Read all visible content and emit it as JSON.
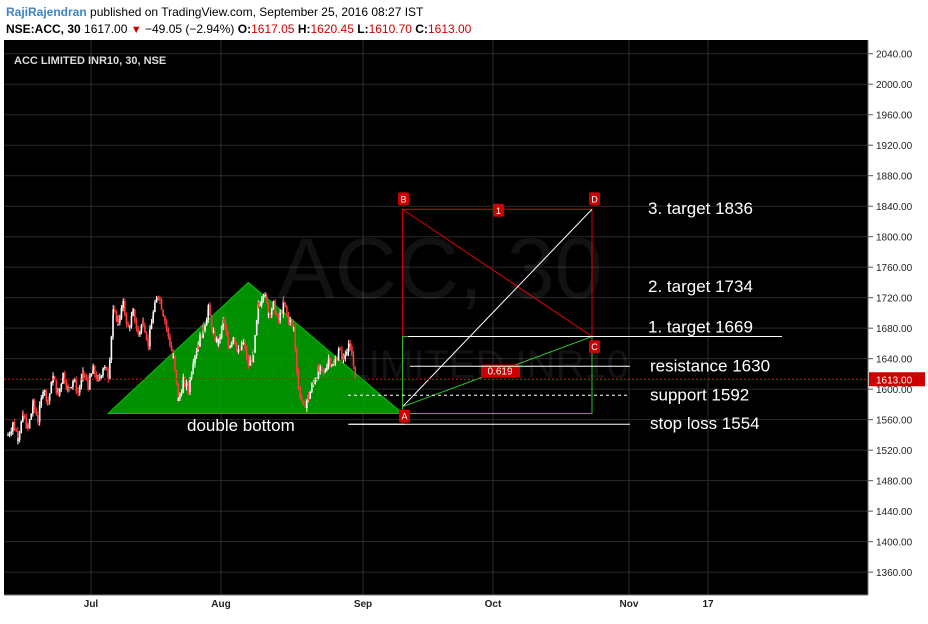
{
  "header": {
    "author": "RajiRajendran",
    "published_text": "published on TradingView.com, September 25, 2016 08:27 IST",
    "symbol_interval": "NSE:ACC, 30",
    "last_price": "1617.00",
    "change": "−49.05 (−2.94%)",
    "o_label": "O:",
    "o_value": "1617.05",
    "h_label": "H:",
    "h_value": "1620.45",
    "l_label": "L:",
    "l_value": "1610.70",
    "c_label": "C:",
    "c_value": "1613.00"
  },
  "chart_data": {
    "type": "candlestick",
    "instrument_title": "ACC LIMITED INR10, 30, NSE",
    "watermark": "ACC, 30",
    "watermark_sub": "ACC LIMITED INR10",
    "y_ticks": [
      1360,
      1400,
      1440,
      1480,
      1520,
      1560,
      1600,
      1640,
      1680,
      1720,
      1760,
      1800,
      1840,
      1880,
      1920,
      1960,
      2000,
      2040
    ],
    "ylim": [
      1330,
      2058
    ],
    "x_ticks": [
      "Jul",
      "Aug",
      "Sep",
      "Oct",
      "Nov",
      "17"
    ],
    "current_price_label": "1613.00",
    "price_path": [
      [
        0,
        1540
      ],
      [
        5,
        1555
      ],
      [
        10,
        1538
      ],
      [
        15,
        1565
      ],
      [
        20,
        1548
      ],
      [
        25,
        1580
      ],
      [
        30,
        1560
      ],
      [
        35,
        1600
      ],
      [
        40,
        1585
      ],
      [
        45,
        1615
      ],
      [
        50,
        1592
      ],
      [
        55,
        1620
      ],
      [
        60,
        1600
      ],
      [
        65,
        1612
      ],
      [
        70,
        1596
      ],
      [
        75,
        1620
      ],
      [
        80,
        1605
      ],
      [
        85,
        1625
      ],
      [
        90,
        1610
      ],
      [
        95,
        1630
      ],
      [
        100,
        1618
      ],
      [
        105,
        1700
      ],
      [
        110,
        1690
      ],
      [
        115,
        1710
      ],
      [
        120,
        1680
      ],
      [
        125,
        1700
      ],
      [
        130,
        1672
      ],
      [
        135,
        1690
      ],
      [
        140,
        1660
      ],
      [
        145,
        1700
      ],
      [
        150,
        1725
      ],
      [
        155,
        1700
      ],
      [
        160,
        1670
      ],
      [
        165,
        1640
      ],
      [
        170,
        1585
      ],
      [
        175,
        1610
      ],
      [
        180,
        1600
      ],
      [
        185,
        1640
      ],
      [
        190,
        1660
      ],
      [
        195,
        1680
      ],
      [
        200,
        1705
      ],
      [
        205,
        1670
      ],
      [
        210,
        1660
      ],
      [
        215,
        1690
      ],
      [
        220,
        1655
      ],
      [
        225,
        1670
      ],
      [
        230,
        1648
      ],
      [
        235,
        1660
      ],
      [
        240,
        1632
      ],
      [
        245,
        1645
      ],
      [
        250,
        1710
      ],
      [
        255,
        1728
      ],
      [
        260,
        1700
      ],
      [
        265,
        1710
      ],
      [
        270,
        1690
      ],
      [
        275,
        1712
      ],
      [
        280,
        1692
      ],
      [
        285,
        1680
      ],
      [
        290,
        1600
      ],
      [
        295,
        1577
      ],
      [
        300,
        1590
      ],
      [
        305,
        1610
      ],
      [
        310,
        1625
      ],
      [
        315,
        1620
      ],
      [
        320,
        1640
      ],
      [
        325,
        1632
      ],
      [
        330,
        1650
      ],
      [
        335,
        1640
      ],
      [
        340,
        1660
      ],
      [
        345,
        1630
      ],
      [
        348,
        1613
      ]
    ],
    "double_bottom_fill": [
      [
        0,
        1568
      ],
      [
        140,
        1740
      ],
      [
        294,
        1568
      ]
    ],
    "abcd": {
      "A": {
        "x": 294,
        "y": 1577
      },
      "B": {
        "x": 294,
        "y": 1836
      },
      "C": {
        "x": 483,
        "y": 1669
      },
      "D": {
        "x": 483,
        "y": 1836
      }
    },
    "fib_label": "0.619",
    "point_labels": {
      "A": "A",
      "B": "B",
      "C": "C",
      "D": "D",
      "mid": "1"
    },
    "levels": [
      {
        "label": "3. target 1836",
        "price": 1836,
        "line": false
      },
      {
        "label": "2. target 1734",
        "price": 1734,
        "line": false
      },
      {
        "label": "1. target 1669",
        "price": 1669,
        "line": true
      },
      {
        "label": "resistance 1630",
        "price": 1630,
        "line": true
      },
      {
        "label": "support 1592",
        "price": 1592,
        "line": true,
        "dashed": true
      },
      {
        "label": "stop loss 1554",
        "price": 1554,
        "line": true
      }
    ],
    "pattern_label": "double bottom",
    "colors": {
      "background": "#000000",
      "grid": "#2b2b2b",
      "triangle_fill": "#00a800",
      "triangle_stroke": "#00c800",
      "box_red": "#e00000",
      "diag_white": "#ffffff",
      "green_line": "#2ec52e",
      "candle_up": "#ffffff",
      "candle_down": "#ff3b3b",
      "price_line": "#ff0000",
      "badge": "#cc0000"
    }
  }
}
